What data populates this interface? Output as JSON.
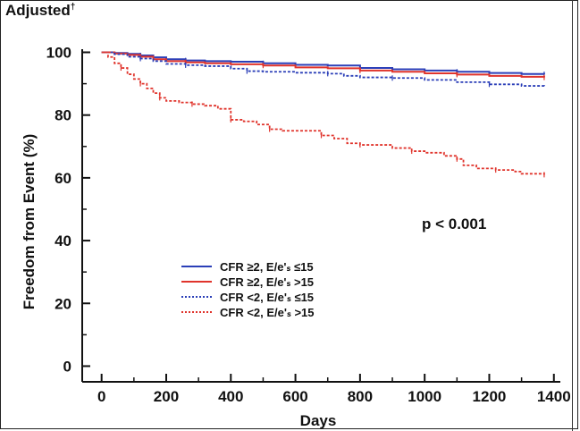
{
  "panel_label": "Adjusted",
  "panel_label_mark": "†",
  "chart_data": {
    "type": "line",
    "title": "",
    "xlabel": "Days",
    "ylabel": "Freedom from Event (%)",
    "xlim": [
      -60,
      1420
    ],
    "ylim": [
      -5,
      101
    ],
    "x_ticks": [
      0,
      200,
      400,
      600,
      800,
      1000,
      1200,
      1400
    ],
    "y_ticks": [
      0,
      20,
      40,
      60,
      80,
      100
    ],
    "annotation": "p < 0.001",
    "grid": false,
    "legend_position": "lower-left",
    "series": [
      {
        "name": "CFR ≥2, E/e'ₛ ≤15",
        "color": "#2b3fb8",
        "style": "solid",
        "points": [
          [
            0,
            100
          ],
          [
            40,
            99.8
          ],
          [
            80,
            99.5
          ],
          [
            120,
            99
          ],
          [
            160,
            98.4
          ],
          [
            200,
            97.8
          ],
          [
            260,
            97.4
          ],
          [
            320,
            97.2
          ],
          [
            400,
            97
          ],
          [
            500,
            96.5
          ],
          [
            600,
            96
          ],
          [
            700,
            95.8
          ],
          [
            800,
            95
          ],
          [
            900,
            94.6
          ],
          [
            1000,
            94.2
          ],
          [
            1100,
            93.8
          ],
          [
            1200,
            93.4
          ],
          [
            1300,
            93.1
          ],
          [
            1370,
            93
          ]
        ]
      },
      {
        "name": "CFR ≥2, E/e'ₛ >15",
        "color": "#e0342c",
        "style": "solid",
        "points": [
          [
            0,
            100
          ],
          [
            40,
            99.6
          ],
          [
            80,
            99.2
          ],
          [
            120,
            98.6
          ],
          [
            160,
            97.8
          ],
          [
            200,
            97.2
          ],
          [
            260,
            96.8
          ],
          [
            320,
            96.5
          ],
          [
            400,
            96.2
          ],
          [
            500,
            95.8
          ],
          [
            600,
            95.2
          ],
          [
            700,
            94.9
          ],
          [
            800,
            94.2
          ],
          [
            900,
            93.8
          ],
          [
            1000,
            93.3
          ],
          [
            1100,
            92.9
          ],
          [
            1200,
            92.5
          ],
          [
            1300,
            92.2
          ],
          [
            1370,
            92
          ]
        ]
      },
      {
        "name": "CFR <2, E/e'ₛ ≤15",
        "color": "#2b3fb8",
        "style": "dotted",
        "points": [
          [
            0,
            100
          ],
          [
            40,
            99.4
          ],
          [
            80,
            98.6
          ],
          [
            120,
            98
          ],
          [
            160,
            97.2
          ],
          [
            200,
            96.3
          ],
          [
            260,
            95.9
          ],
          [
            320,
            95.6
          ],
          [
            400,
            94.8
          ],
          [
            450,
            94
          ],
          [
            500,
            93.8
          ],
          [
            600,
            93.5
          ],
          [
            700,
            93.2
          ],
          [
            750,
            92.5
          ],
          [
            800,
            92
          ],
          [
            900,
            91.8
          ],
          [
            1000,
            91.2
          ],
          [
            1100,
            90.5
          ],
          [
            1200,
            89.8
          ],
          [
            1300,
            89.3
          ],
          [
            1370,
            89
          ]
        ]
      },
      {
        "name": "CFR <2, E/e'ₛ >15",
        "color": "#e0342c",
        "style": "dotted",
        "points": [
          [
            0,
            100
          ],
          [
            20,
            98.5
          ],
          [
            40,
            96.5
          ],
          [
            60,
            95
          ],
          [
            80,
            93
          ],
          [
            100,
            91.5
          ],
          [
            120,
            90
          ],
          [
            140,
            88.5
          ],
          [
            160,
            87
          ],
          [
            180,
            85.5
          ],
          [
            200,
            84.5
          ],
          [
            240,
            84
          ],
          [
            280,
            83.5
          ],
          [
            320,
            83
          ],
          [
            360,
            82
          ],
          [
            400,
            78.5
          ],
          [
            440,
            78
          ],
          [
            480,
            77
          ],
          [
            520,
            75.5
          ],
          [
            560,
            75
          ],
          [
            640,
            75
          ],
          [
            680,
            73.5
          ],
          [
            720,
            72.5
          ],
          [
            760,
            71
          ],
          [
            800,
            70.5
          ],
          [
            860,
            70.5
          ],
          [
            900,
            69.5
          ],
          [
            960,
            68.5
          ],
          [
            1000,
            68
          ],
          [
            1060,
            67
          ],
          [
            1100,
            66
          ],
          [
            1120,
            64
          ],
          [
            1160,
            63
          ],
          [
            1220,
            62.5
          ],
          [
            1280,
            62
          ],
          [
            1300,
            61.3
          ],
          [
            1370,
            61
          ]
        ]
      }
    ]
  }
}
